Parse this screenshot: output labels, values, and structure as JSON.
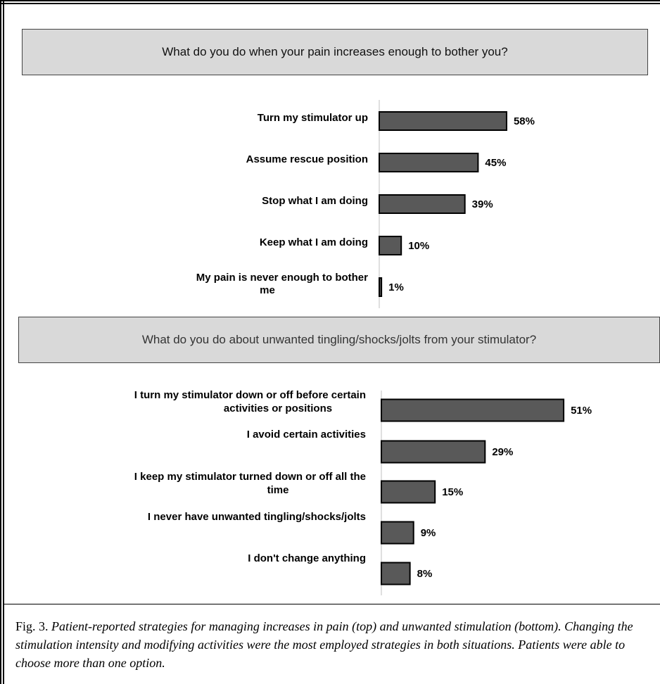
{
  "chart_data": [
    {
      "type": "bar",
      "orientation": "horizontal",
      "title": "What do you do when your pain increases enough to bother you?",
      "categories": [
        "Turn my stimulator up",
        "Assume rescue position",
        "Stop what I am doing",
        "Keep what I am doing",
        "My pain is never enough to bother me"
      ],
      "values": [
        58,
        45,
        39,
        10,
        1
      ],
      "value_labels": [
        "58%",
        "45%",
        "39%",
        "10%",
        "1%"
      ],
      "unit": "%",
      "grid": false,
      "legend": "none"
    },
    {
      "type": "bar",
      "orientation": "horizontal",
      "title": "What do you do about unwanted tingling/shocks/jolts from your stimulator?",
      "categories": [
        "I turn my stimulator down or off before certain activities or positions",
        "I avoid certain activities",
        "I keep my stimulator turned down or off all the time",
        "I never have unwanted tingling/shocks/jolts",
        "I don't change anything"
      ],
      "values": [
        51,
        29,
        15,
        9,
        8
      ],
      "value_labels": [
        "51%",
        "29%",
        "15%",
        "9%",
        "8%"
      ],
      "unit": "%",
      "grid": false,
      "legend": "none"
    }
  ],
  "caption": {
    "fig_label": "Fig. 3.",
    "text": "Patient-reported strategies for managing increases in pain (top) and unwanted stimulation (bottom). Changing the stimulation intensity and modifying activities were the most employed strategies in both situations. Patients were able to choose more than one option."
  }
}
